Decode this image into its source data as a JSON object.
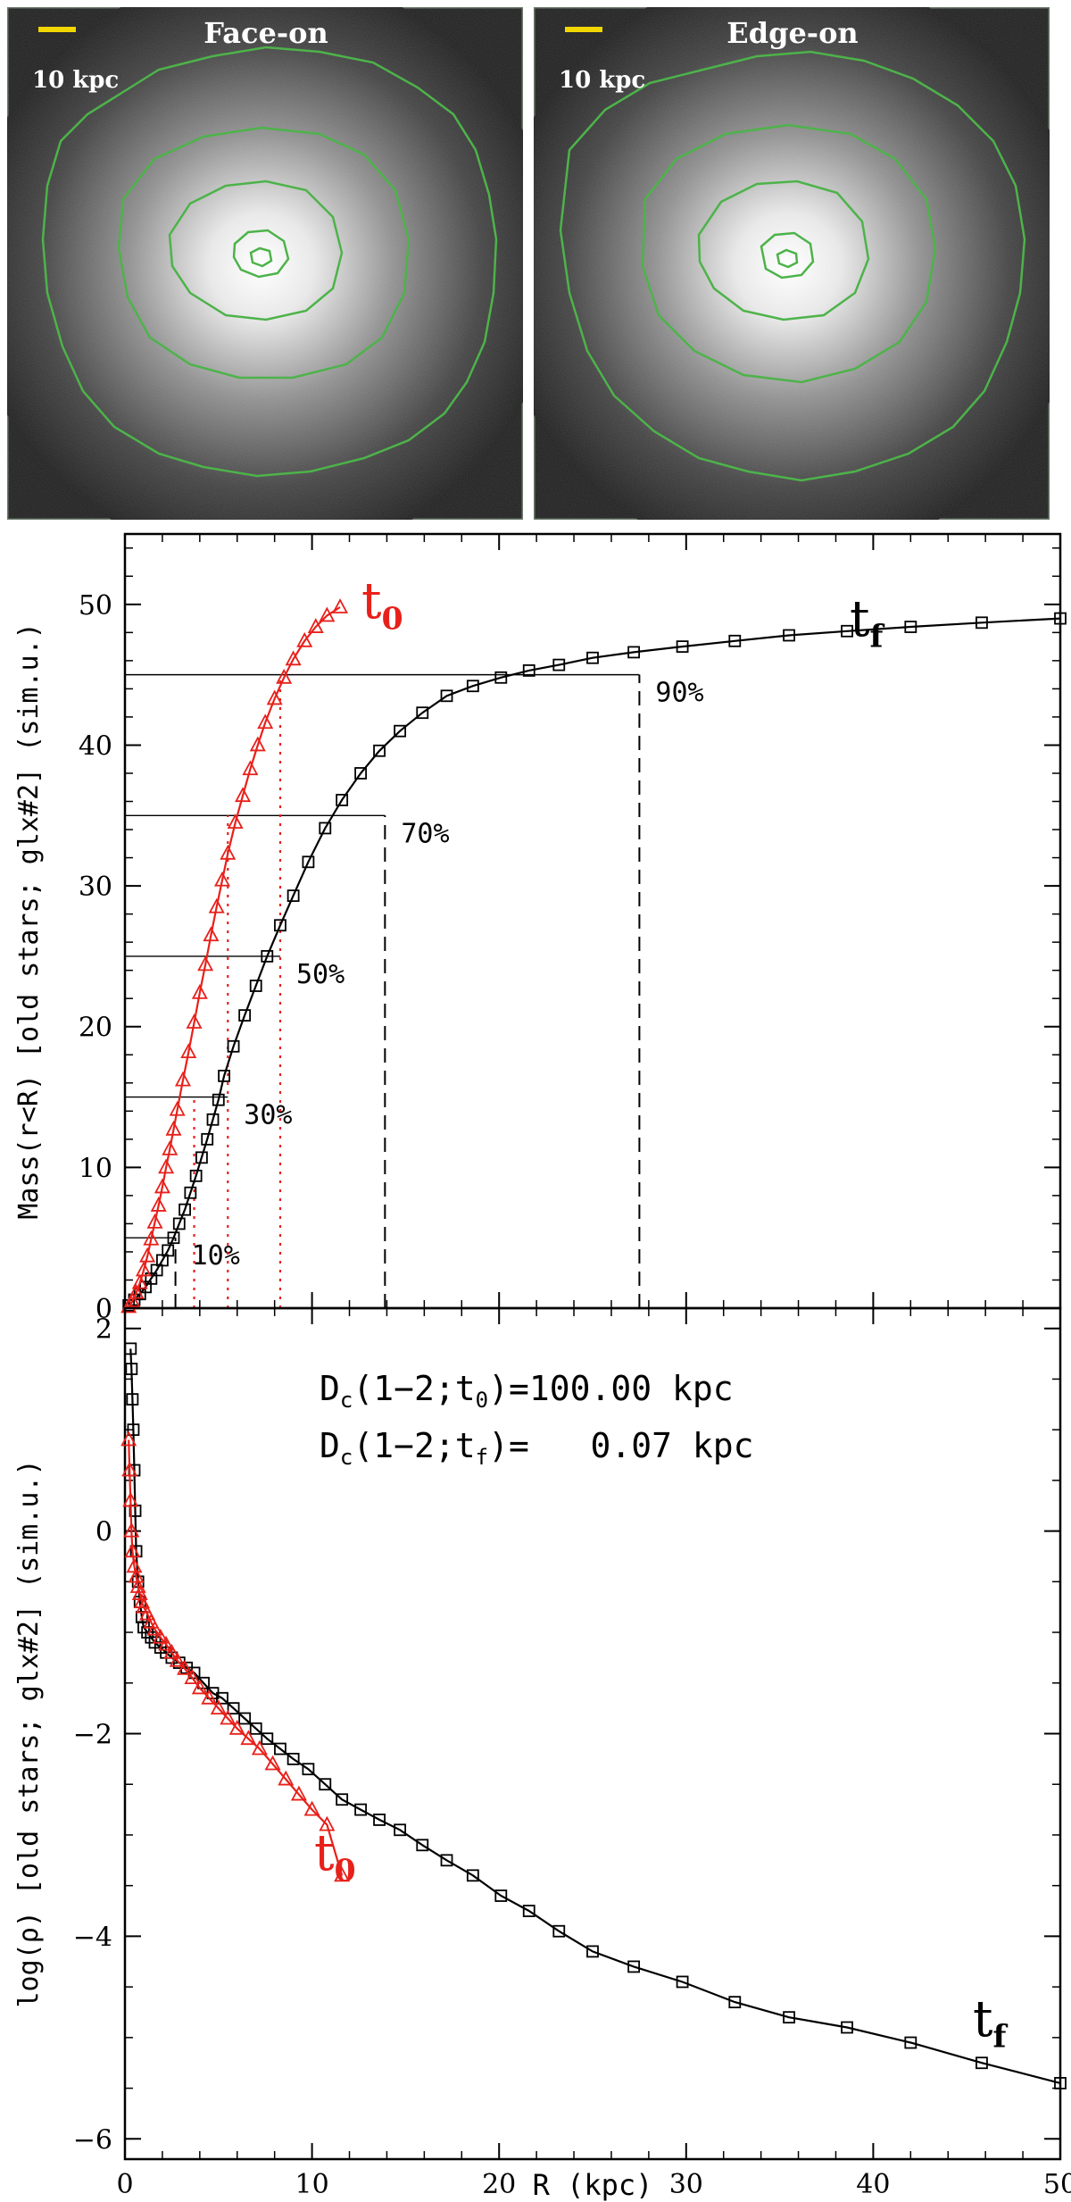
{
  "images": {
    "face": {
      "title": "Face-on",
      "scale_label": "10 kpc"
    },
    "edge": {
      "title": "Edge-on",
      "scale_label": "10 kpc"
    }
  },
  "colors": {
    "tf": "#000000",
    "t0": "#e8201a",
    "contour": "#4db34a",
    "scale": "#f2d600"
  },
  "chart_data": [
    {
      "type": "line",
      "ylabel": "Mass(r<R) [old stars; glx#2] (sim.u.)",
      "xlim": [
        0,
        50
      ],
      "ylim": [
        0,
        55
      ],
      "yticks": [
        0,
        10,
        20,
        30,
        40,
        50
      ],
      "series": [
        {
          "name": "t_f",
          "label": "t",
          "sub": "f",
          "color": "#000000",
          "marker": "square",
          "x": [
            0.2,
            0.5,
            0.8,
            1.1,
            1.4,
            1.7,
            2.0,
            2.3,
            2.6,
            2.9,
            3.2,
            3.5,
            3.8,
            4.1,
            4.4,
            4.7,
            5.0,
            5.3,
            5.8,
            6.4,
            7.0,
            7.6,
            8.3,
            9.0,
            9.8,
            10.7,
            11.6,
            12.6,
            13.6,
            14.7,
            15.9,
            17.2,
            18.6,
            20.1,
            21.6,
            23.2,
            25.0,
            27.2,
            29.8,
            32.6,
            35.5,
            38.6,
            42.0,
            45.8,
            50.0
          ],
          "y": [
            0.2,
            0.6,
            1.0,
            1.5,
            2.1,
            2.7,
            3.4,
            4.1,
            5.0,
            6.0,
            7.0,
            8.2,
            9.4,
            10.7,
            12.0,
            13.4,
            14.8,
            16.5,
            18.6,
            20.8,
            22.9,
            25.0,
            27.2,
            29.3,
            31.7,
            34.1,
            36.1,
            38.0,
            39.6,
            41.0,
            42.3,
            43.5,
            44.2,
            44.8,
            45.3,
            45.7,
            46.2,
            46.6,
            47.0,
            47.4,
            47.8,
            48.1,
            48.4,
            48.7,
            49.0
          ]
        },
        {
          "name": "t_0",
          "label": "t",
          "sub": "0",
          "color": "#e8201a",
          "marker": "triangle",
          "x": [
            0.2,
            0.4,
            0.6,
            0.8,
            1.0,
            1.2,
            1.4,
            1.6,
            1.8,
            2.0,
            2.2,
            2.4,
            2.6,
            2.8,
            3.1,
            3.4,
            3.7,
            4.0,
            4.3,
            4.6,
            4.9,
            5.2,
            5.5,
            5.9,
            6.3,
            6.7,
            7.1,
            7.5,
            8.0,
            8.5,
            9.0,
            9.6,
            10.2,
            10.8,
            11.5
          ],
          "y": [
            0.1,
            0.5,
            1.1,
            1.8,
            2.7,
            3.7,
            4.9,
            6.1,
            7.3,
            8.6,
            10.0,
            11.3,
            12.7,
            14.1,
            16.2,
            18.2,
            20.3,
            22.4,
            24.4,
            26.5,
            28.5,
            30.4,
            32.3,
            34.5,
            36.4,
            38.3,
            40.0,
            41.6,
            43.3,
            44.8,
            46.1,
            47.4,
            48.4,
            49.2,
            49.8
          ]
        }
      ],
      "hlines": [
        {
          "y": 45,
          "label": "90%",
          "tf_x": 27.5
        },
        {
          "y": 35,
          "label": "70%",
          "tf_x": 13.9
        },
        {
          "y": 25,
          "label": "50%",
          "tf_x": 8.3
        },
        {
          "y": 15,
          "label": "30%",
          "tf_x": 5.5
        },
        {
          "y": 5,
          "label": "10%",
          "tf_x": 2.7
        }
      ],
      "vlines_tf": [
        2.7,
        13.9,
        27.5
      ],
      "vlines_t0": [
        3.7,
        5.5,
        8.3
      ]
    },
    {
      "type": "line",
      "ylabel": "log(ρ) [old stars; glx#2] (sim.u.)",
      "xlabel": "R (kpc)",
      "xlim": [
        0,
        50
      ],
      "ylim": [
        -6.2,
        2.2
      ],
      "xticks": [
        0,
        10,
        20,
        30,
        40,
        50
      ],
      "yticks": [
        -6,
        -4,
        -2,
        0,
        2
      ],
      "annotations": [
        {
          "text": "D",
          "sub": "c",
          "mid": "(1−2;t",
          "sub2": "0",
          "tail": ")=100.00 kpc"
        },
        {
          "text": "D",
          "sub": "c",
          "mid": "(1−2;t",
          "sub2": "f",
          "tail": ")=   0.07 kpc"
        }
      ],
      "series": [
        {
          "name": "t_f",
          "label": "t",
          "sub": "f",
          "color": "#000000",
          "marker": "square",
          "x": [
            0.3,
            0.35,
            0.4,
            0.45,
            0.5,
            0.55,
            0.6,
            0.7,
            0.8,
            0.9,
            1.0,
            1.2,
            1.4,
            1.6,
            1.9,
            2.2,
            2.5,
            2.9,
            3.3,
            3.7,
            4.2,
            4.7,
            5.2,
            5.8,
            6.4,
            7.0,
            7.6,
            8.3,
            9.0,
            9.8,
            10.7,
            11.6,
            12.6,
            13.6,
            14.7,
            15.9,
            17.2,
            18.6,
            20.1,
            21.6,
            23.2,
            25.0,
            27.2,
            29.8,
            32.6,
            35.5,
            38.6,
            42.0,
            45.8,
            50.0
          ],
          "y": [
            1.8,
            1.6,
            1.3,
            1.0,
            0.6,
            0.2,
            -0.2,
            -0.5,
            -0.7,
            -0.85,
            -0.95,
            -1.0,
            -1.05,
            -1.1,
            -1.15,
            -1.2,
            -1.25,
            -1.3,
            -1.35,
            -1.4,
            -1.5,
            -1.6,
            -1.65,
            -1.75,
            -1.85,
            -1.95,
            -2.05,
            -2.15,
            -2.25,
            -2.35,
            -2.5,
            -2.65,
            -2.75,
            -2.85,
            -2.95,
            -3.1,
            -3.25,
            -3.4,
            -3.6,
            -3.75,
            -3.95,
            -4.15,
            -4.3,
            -4.45,
            -4.65,
            -4.8,
            -4.9,
            -5.05,
            -5.25,
            -5.45
          ]
        },
        {
          "name": "t_0",
          "label": "t",
          "sub": "0",
          "color": "#e8201a",
          "marker": "triangle",
          "x": [
            0.2,
            0.25,
            0.3,
            0.35,
            0.4,
            0.5,
            0.6,
            0.7,
            0.8,
            0.9,
            1.0,
            1.2,
            1.4,
            1.6,
            1.9,
            2.2,
            2.5,
            2.8,
            3.2,
            3.6,
            4.0,
            4.5,
            5.0,
            5.5,
            6.0,
            6.6,
            7.2,
            7.9,
            8.6,
            9.3,
            10.0,
            10.8,
            11.6
          ],
          "y": [
            0.9,
            0.6,
            0.3,
            0.0,
            -0.2,
            -0.35,
            -0.45,
            -0.55,
            -0.62,
            -0.7,
            -0.75,
            -0.82,
            -0.9,
            -0.97,
            -1.05,
            -1.12,
            -1.2,
            -1.28,
            -1.36,
            -1.45,
            -1.55,
            -1.65,
            -1.75,
            -1.85,
            -1.95,
            -2.05,
            -2.15,
            -2.3,
            -2.45,
            -2.6,
            -2.75,
            -2.9,
            -3.4
          ]
        }
      ]
    }
  ]
}
